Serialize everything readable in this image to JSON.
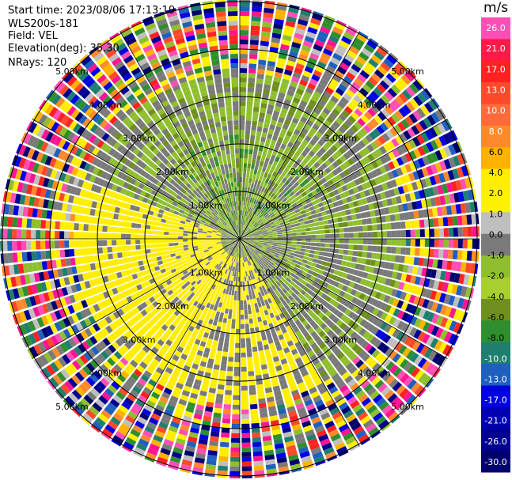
{
  "header": {
    "start_time": "Start time: 2023/08/06 17:13:19",
    "instrument": "WLS200s-181",
    "field": "Field: VEL",
    "elevation": "Elevation(deg): 35.30",
    "nrays": "NRays: 120"
  },
  "colorbar": {
    "unit": "m/s",
    "ticks": [
      "26.0",
      "21.0",
      "17.0",
      "13.0",
      "10.0",
      "8.0",
      "6.0",
      "4.0",
      "2.0",
      "1.0",
      "0.0",
      "-1.0",
      "-2.0",
      "-4.0",
      "-6.0",
      "-8.0",
      "-10.0",
      "-13.0",
      "-17.0",
      "-21.0",
      "-26.0",
      "-30.0"
    ],
    "colors": [
      "#ff4fb6",
      "#ff1a4a",
      "#ff2222",
      "#ff4a2a",
      "#ff6a3a",
      "#ff8a2a",
      "#ffb300",
      "#ffee00",
      "#fff200",
      "#bfbfbf",
      "#7a7a7a",
      "#8fbf2f",
      "#a8cf2f",
      "#6f8f1f",
      "#2f8f2f",
      "#1f7f6f",
      "#1f5fbf",
      "#0000e0",
      "#0000b0",
      "#000090",
      "#00006f"
    ]
  },
  "chart_data": {
    "type": "heatmap",
    "title": "",
    "field": "VEL",
    "units": "m/s",
    "nrays": 120,
    "range_ring_labels": [
      "1.00km",
      "2.00km",
      "3.00km",
      "4.00km",
      "5.00km"
    ],
    "range_rings_km": [
      1,
      2,
      3,
      4,
      5
    ],
    "spokes_deg": [
      0,
      30,
      60,
      90,
      120,
      150
    ],
    "color_range": [
      -30,
      26
    ]
  }
}
